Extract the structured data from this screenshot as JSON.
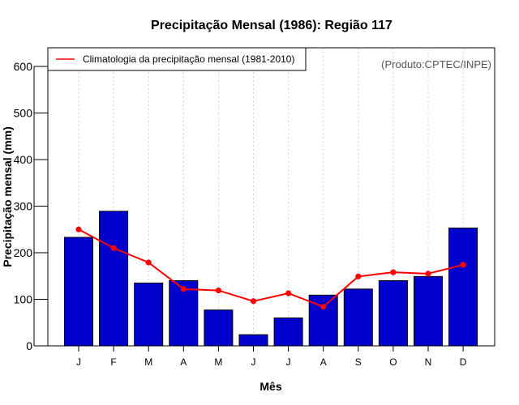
{
  "chart_data": {
    "type": "bar",
    "title": "Precipitação Mensal (1986): Região 117",
    "xlabel": "Mês",
    "ylabel": "Precipitação mensal (mm)",
    "ylim": [
      0,
      640
    ],
    "yticks": [
      0,
      100,
      200,
      300,
      400,
      500,
      600
    ],
    "categories": [
      "J",
      "F",
      "M",
      "A",
      "M",
      "J",
      "J",
      "A",
      "S",
      "O",
      "N",
      "D"
    ],
    "series": [
      {
        "name": "Precipitação mensal (1986)",
        "type": "bar",
        "color": "#0000cd",
        "values": [
          233,
          289,
          135,
          140,
          77,
          24,
          60,
          109,
          122,
          140,
          149,
          253
        ]
      },
      {
        "name": "Climatologia da precipitação mensal (1981-2010)",
        "type": "line",
        "color": "#ff0000",
        "values": [
          250,
          210,
          179,
          122,
          119,
          96,
          113,
          84,
          149,
          158,
          155,
          174
        ]
      }
    ],
    "legend": {
      "label": "Climatologia da precipitação mensal (1981-2010)",
      "placement": "top-left"
    },
    "annotation": "(Produto:CPTEC/INPE)",
    "grid": "vertical dotted"
  }
}
